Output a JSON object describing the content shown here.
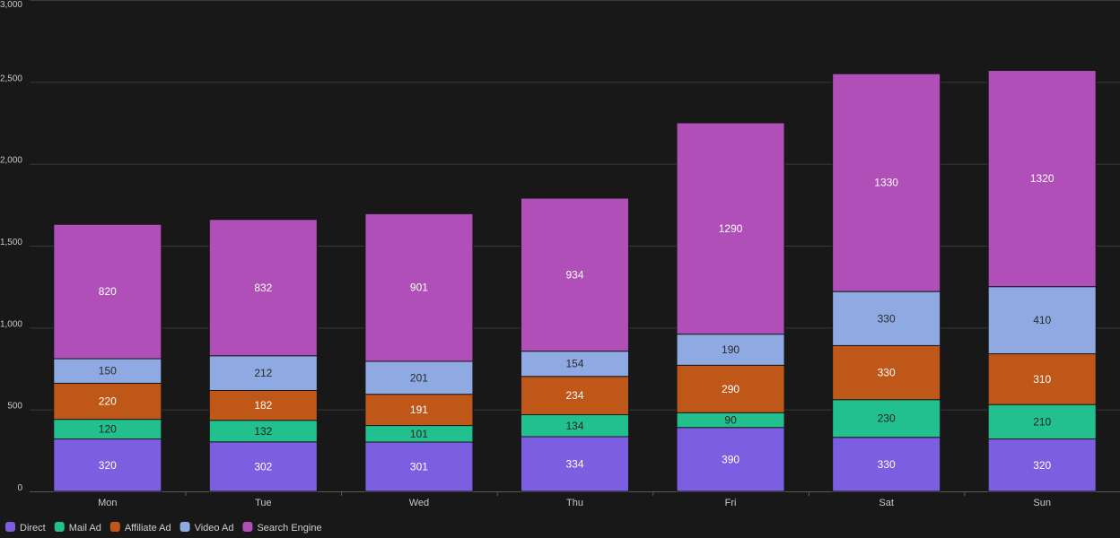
{
  "chart_data": {
    "type": "bar",
    "stacked": true,
    "title": "",
    "xlabel": "",
    "ylabel": "",
    "categories": [
      "Mon",
      "Tue",
      "Wed",
      "Thu",
      "Fri",
      "Sat",
      "Sun"
    ],
    "ylim": [
      0,
      3000
    ],
    "yticks": [
      0,
      500,
      1000,
      1500,
      2000,
      2500,
      3000
    ],
    "ytick_labels": [
      "0",
      "500",
      "1,000",
      "1,500",
      "2,000",
      "2,500",
      "3,000"
    ],
    "grid": true,
    "legend_position": "bottom-left",
    "series": [
      {
        "name": "Direct",
        "color": "#7b5fe0",
        "label_color": "#ffffff",
        "values": [
          320,
          302,
          301,
          334,
          390,
          330,
          320
        ]
      },
      {
        "name": "Mail Ad",
        "color": "#22c08e",
        "label_color": "#222222",
        "values": [
          120,
          132,
          101,
          134,
          90,
          230,
          210
        ]
      },
      {
        "name": "Affiliate Ad",
        "color": "#bf5718",
        "label_color": "#ffffff",
        "values": [
          220,
          182,
          191,
          234,
          290,
          330,
          310
        ]
      },
      {
        "name": "Video Ad",
        "color": "#8fa9e2",
        "label_color": "#2a2a2a",
        "values": [
          150,
          212,
          201,
          154,
          190,
          330,
          410
        ]
      },
      {
        "name": "Search Engine",
        "color": "#b04fb7",
        "label_color": "#ffffff",
        "values": [
          820,
          832,
          901,
          934,
          1290,
          1330,
          1320
        ]
      }
    ]
  }
}
